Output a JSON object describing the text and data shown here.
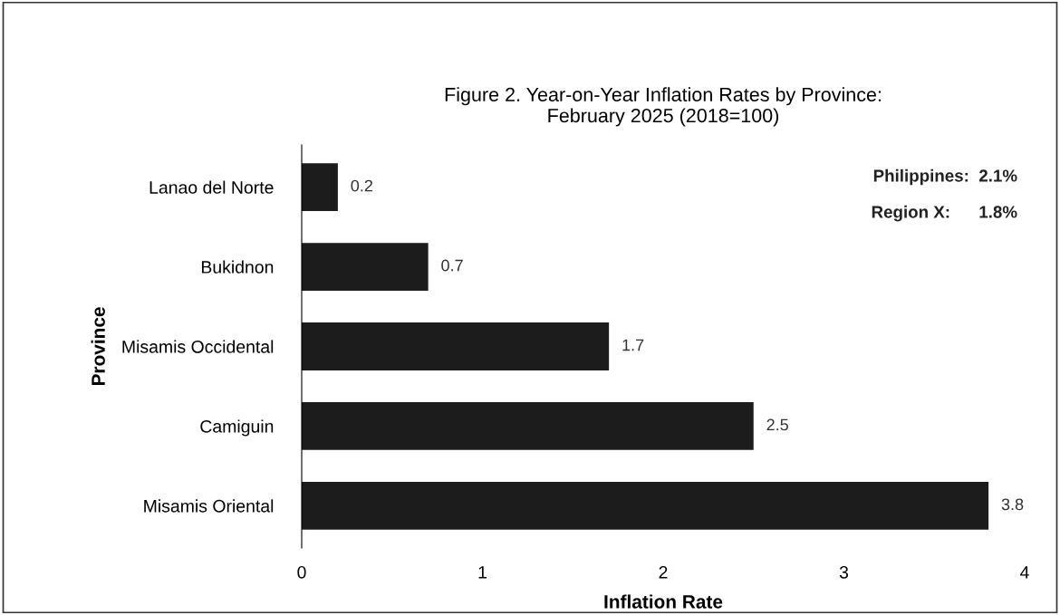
{
  "chart_data": {
    "type": "bar",
    "orientation": "horizontal",
    "title": "Figure 2. Year-on-Year Inflation Rates by Province:\nFebruary 2025 (2018=100)",
    "xlabel": "Inflation Rate",
    "ylabel": "Province",
    "categories": [
      "Lanao del Norte",
      "Bukidnon",
      "Misamis Occidental",
      "Camiguin",
      "Misamis Oriental"
    ],
    "values": [
      0.2,
      0.7,
      1.7,
      2.5,
      3.8
    ],
    "color": "#1c1c1c",
    "xlim": [
      0,
      4
    ],
    "xticks": [
      0,
      1,
      2,
      3,
      4
    ],
    "grid": false,
    "data_labels": true,
    "annotations": [
      "Philippines:  2.1%",
      "Region X:      1.8%"
    ]
  }
}
